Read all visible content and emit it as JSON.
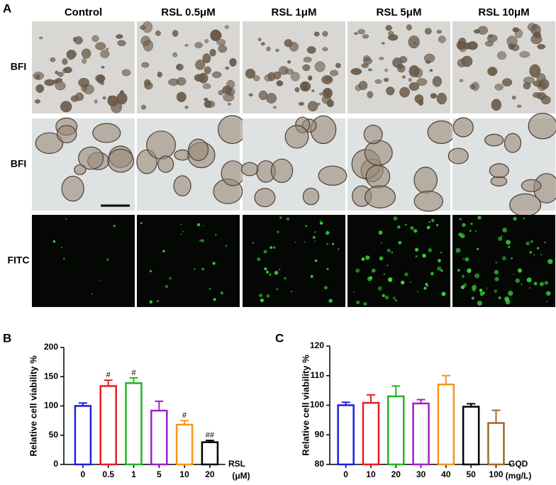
{
  "panel_a": {
    "label": "A",
    "columns": [
      "Control",
      "RSL 0.5μM",
      "RSL 1μM",
      "RSL 5μM",
      "RSL 10μM"
    ],
    "rows": [
      "BFI",
      "BFI",
      "FITC"
    ]
  },
  "chart_data": [
    {
      "type": "bar",
      "panel_label": "B",
      "y_label": "Relative cell viability %",
      "x_label": "RSL",
      "x_unit": "(μM)",
      "categories": [
        "0",
        "0.5",
        "1",
        "5",
        "10",
        "20"
      ],
      "values": [
        100,
        134,
        139,
        92,
        68,
        38
      ],
      "errors": [
        5,
        10,
        9,
        16,
        7,
        3
      ],
      "annotations": [
        null,
        "#",
        "#",
        null,
        "#",
        "##"
      ],
      "colors": [
        "#1f1fe0",
        "#e81c24",
        "#22b522",
        "#a020c8",
        "#f7941d",
        "#000000"
      ],
      "ylim": [
        0,
        200
      ],
      "yticks": [
        0,
        50,
        100,
        150,
        200
      ]
    },
    {
      "type": "bar",
      "panel_label": "C",
      "y_label": "Relative cell viability %",
      "x_label": "GQD",
      "x_unit": "(mg/L)",
      "categories": [
        "0",
        "10",
        "20",
        "30",
        "40",
        "50",
        "100"
      ],
      "values": [
        100,
        100.8,
        103,
        100.6,
        107,
        99.5,
        94
      ],
      "errors": [
        1,
        2.7,
        3.5,
        1.3,
        3,
        1,
        4.3
      ],
      "colors": [
        "#1f1fe0",
        "#e81c24",
        "#22b522",
        "#a020c8",
        "#f7941d",
        "#000000",
        "#a0682a"
      ],
      "ylim": [
        80,
        120
      ],
      "yticks": [
        80,
        90,
        100,
        110,
        120
      ]
    }
  ]
}
